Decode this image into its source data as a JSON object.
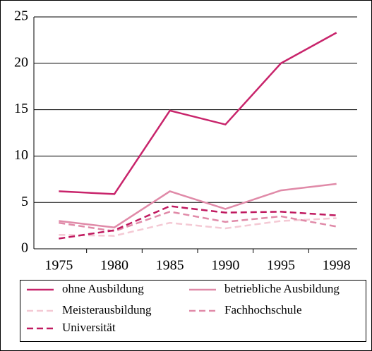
{
  "chart_data": {
    "type": "line",
    "categories": [
      "1975",
      "1980",
      "1985",
      "1990",
      "1995",
      "1998"
    ],
    "series": [
      {
        "name": "ohne Ausbildung",
        "color": "#c8246b",
        "dashed": false,
        "values": [
          6.2,
          5.9,
          14.9,
          13.4,
          20.0,
          23.3
        ]
      },
      {
        "name": "betriebliche Ausbildung",
        "color": "#e08aa8",
        "dashed": false,
        "values": [
          3.0,
          2.3,
          6.2,
          4.3,
          6.3,
          7.0
        ]
      },
      {
        "name": "Meisterausbildung",
        "color": "#f4c9d4",
        "dashed": true,
        "values": [
          1.5,
          1.4,
          2.8,
          2.2,
          3.0,
          3.3
        ]
      },
      {
        "name": "Fachhochschule",
        "color": "#e08aa8",
        "dashed": true,
        "values": [
          2.8,
          1.9,
          4.0,
          2.9,
          3.5,
          2.4
        ]
      },
      {
        "name": "Universität",
        "color": "#c01a60",
        "dashed": true,
        "values": [
          1.1,
          2.0,
          4.6,
          3.9,
          4.0,
          3.6
        ]
      }
    ],
    "ylim": [
      0,
      25
    ],
    "yticks": [
      0,
      5,
      10,
      15,
      20,
      25
    ],
    "grid": true
  }
}
